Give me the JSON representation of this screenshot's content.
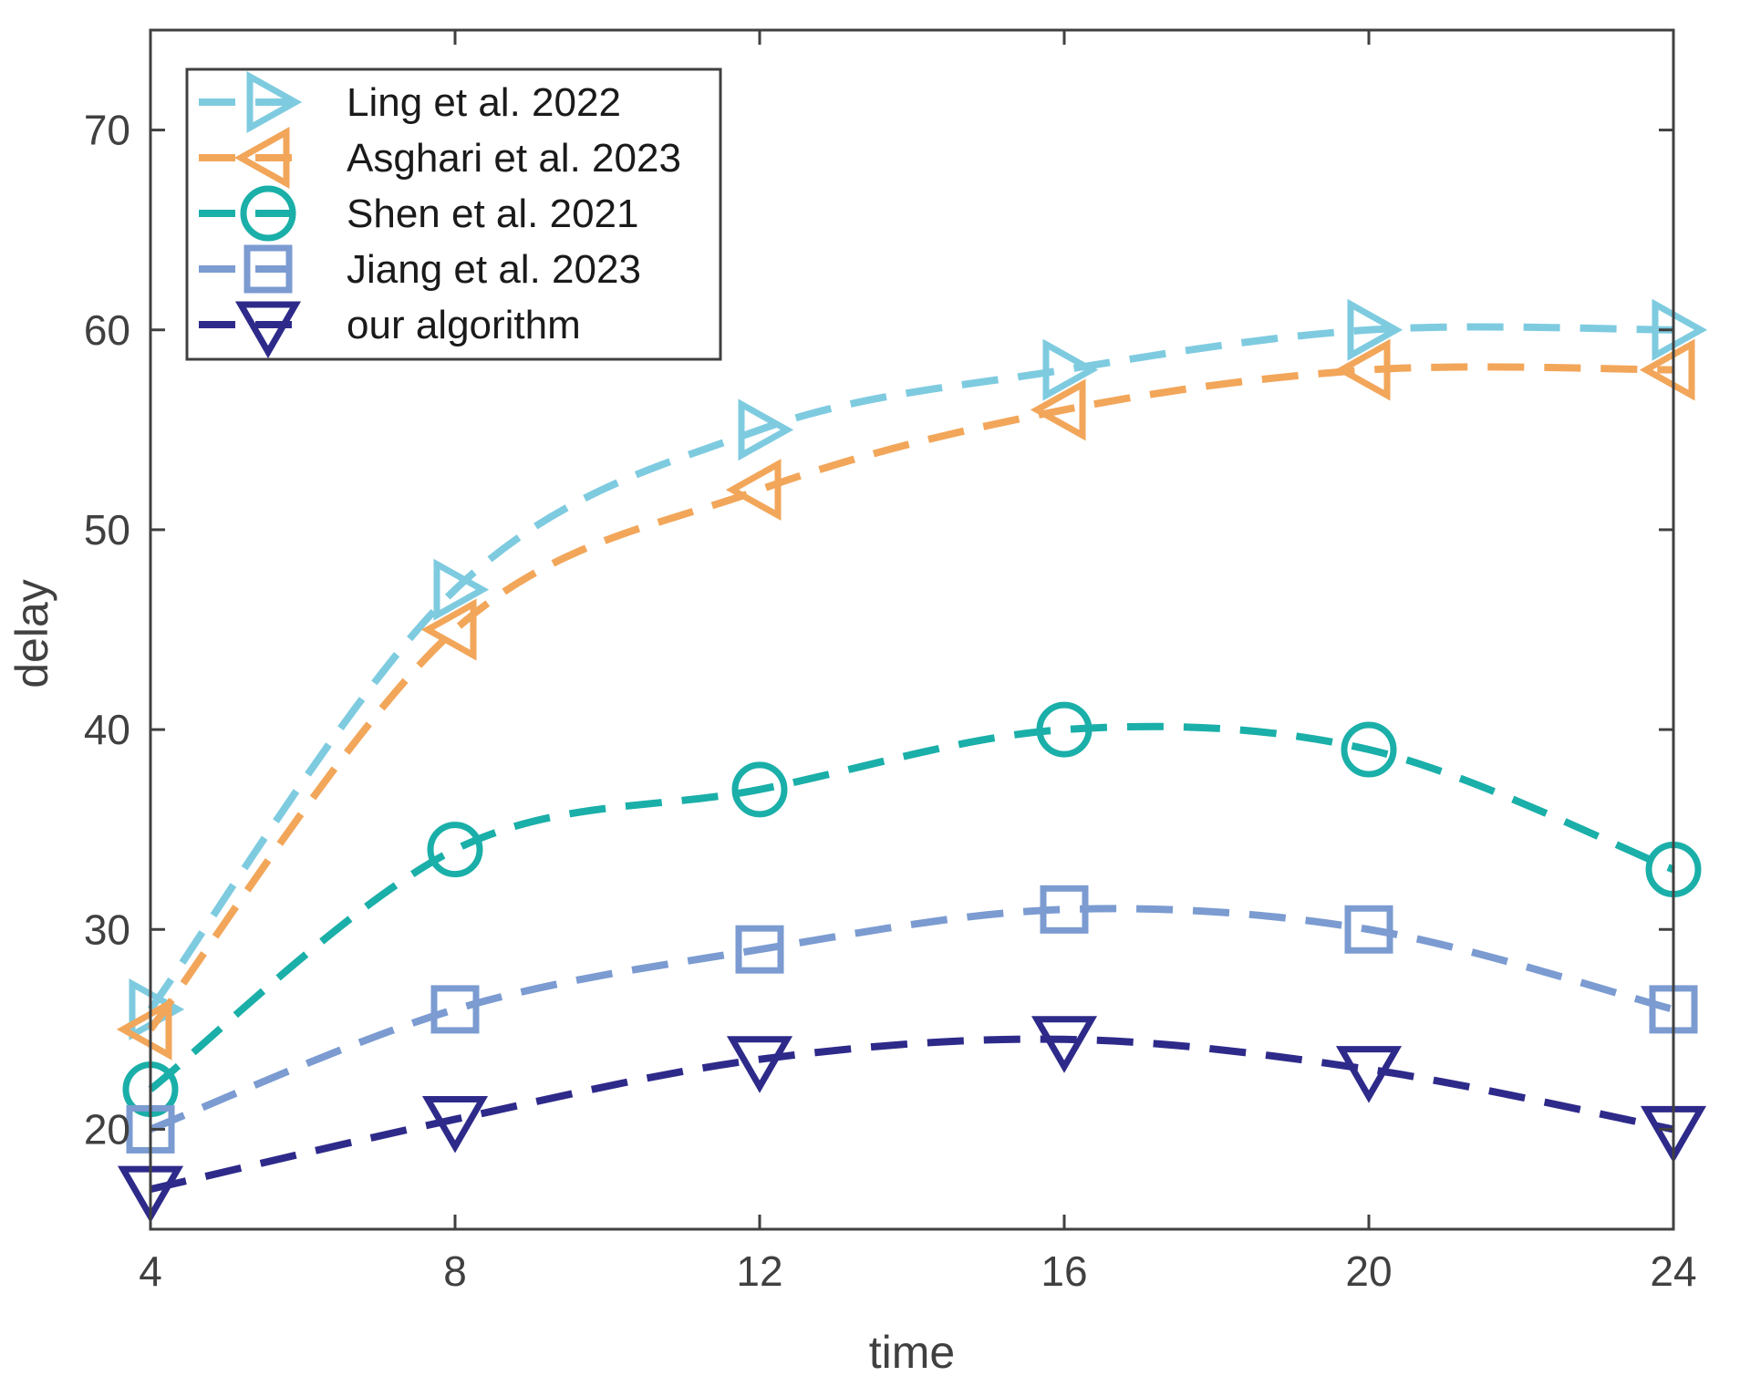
{
  "chart_data": {
    "type": "line",
    "title": "",
    "xlabel": "time",
    "ylabel": "delay",
    "x": [
      4,
      8,
      12,
      16,
      20,
      24
    ],
    "xlim": [
      4,
      24
    ],
    "ylim": [
      15,
      75
    ],
    "xticks": [
      "4",
      "8",
      "12",
      "16",
      "20",
      "24"
    ],
    "yticks": [
      "20",
      "30",
      "40",
      "50",
      "60",
      "70"
    ],
    "grid": false,
    "legend_position": "top-left",
    "series": [
      {
        "name": "Ling et al. 2022",
        "values": [
          26,
          47,
          55,
          58,
          60,
          60
        ],
        "color": "#7ecbe0",
        "marker": "triangle-right"
      },
      {
        "name": "Asghari et al. 2023",
        "values": [
          25,
          45,
          52,
          56,
          58,
          58
        ],
        "color": "#f2a65a",
        "marker": "triangle-left"
      },
      {
        "name": "Shen et al. 2021",
        "values": [
          22,
          34,
          37,
          40,
          39,
          33
        ],
        "color": "#1aafa8",
        "marker": "circle"
      },
      {
        "name": "Jiang et al. 2023",
        "values": [
          20,
          26,
          29,
          31,
          30,
          26
        ],
        "color": "#7b9bd1",
        "marker": "square"
      },
      {
        "name": "our algorithm",
        "values": [
          17,
          20.5,
          23.5,
          24.5,
          23,
          20
        ],
        "color": "#2e2a8a",
        "marker": "triangle-down"
      }
    ]
  }
}
